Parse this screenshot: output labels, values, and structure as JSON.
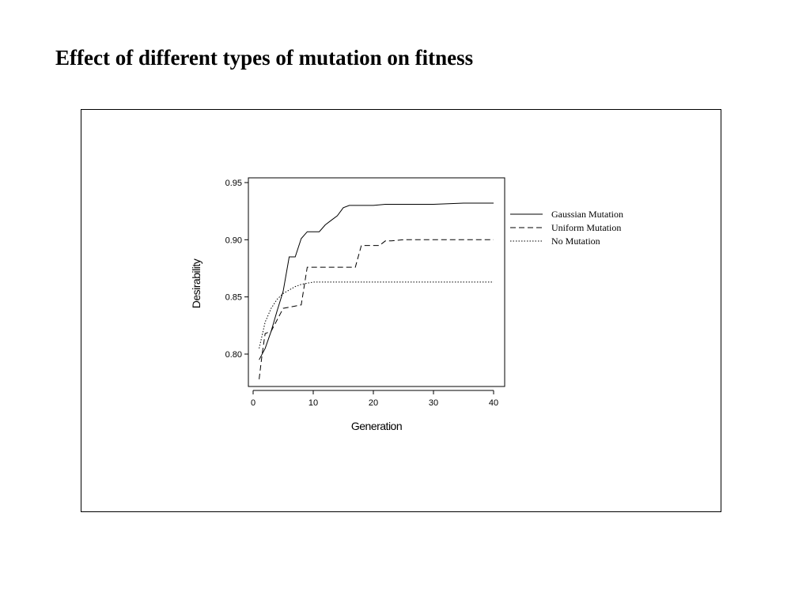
{
  "page": {
    "title": "Effect of different types of mutation on fitness"
  },
  "chart_data": {
    "type": "line",
    "title": "",
    "xlabel": "Generation",
    "ylabel": "Desirability",
    "xlim": [
      0,
      40
    ],
    "ylim": [
      0.775,
      0.955
    ],
    "x_ticks": [
      0,
      10,
      20,
      30,
      40
    ],
    "x_tick_labels": [
      "0",
      "10",
      "20",
      "30",
      "40"
    ],
    "y_ticks": [
      0.8,
      0.85,
      0.9,
      0.95
    ],
    "y_tick_labels": [
      "0.80",
      "0.85",
      "0.90",
      "0.95"
    ],
    "grid": false,
    "legend_position": "right",
    "series": [
      {
        "name": "Gaussian Mutation",
        "style": "solid",
        "color": "#000000",
        "x": [
          1,
          2,
          3,
          4,
          5,
          6,
          7,
          8,
          9,
          10,
          11,
          12,
          13,
          14,
          15,
          16,
          18,
          20,
          22,
          25,
          30,
          35,
          40
        ],
        "y": [
          0.795,
          0.805,
          0.82,
          0.838,
          0.855,
          0.885,
          0.885,
          0.901,
          0.907,
          0.907,
          0.907,
          0.913,
          0.917,
          0.921,
          0.928,
          0.93,
          0.93,
          0.93,
          0.931,
          0.931,
          0.931,
          0.932,
          0.932
        ]
      },
      {
        "name": "Uniform Mutation",
        "style": "dashed",
        "color": "#000000",
        "x": [
          1,
          1.5,
          2,
          3,
          4,
          5,
          6,
          7,
          8,
          9,
          10,
          12,
          14,
          16,
          17,
          18,
          19,
          20,
          21,
          22,
          23,
          25,
          30,
          35,
          40
        ],
        "y": [
          0.778,
          0.8,
          0.818,
          0.82,
          0.83,
          0.84,
          0.841,
          0.842,
          0.843,
          0.876,
          0.876,
          0.876,
          0.876,
          0.876,
          0.876,
          0.895,
          0.895,
          0.895,
          0.895,
          0.899,
          0.899,
          0.9,
          0.9,
          0.9,
          0.9
        ]
      },
      {
        "name": "No Mutation",
        "style": "dotted",
        "color": "#000000",
        "x": [
          1,
          2,
          3,
          4,
          5,
          6,
          7,
          8,
          9,
          10,
          15,
          20,
          30,
          40
        ],
        "y": [
          0.805,
          0.828,
          0.84,
          0.848,
          0.853,
          0.856,
          0.859,
          0.861,
          0.862,
          0.863,
          0.863,
          0.863,
          0.863,
          0.863
        ]
      }
    ]
  }
}
